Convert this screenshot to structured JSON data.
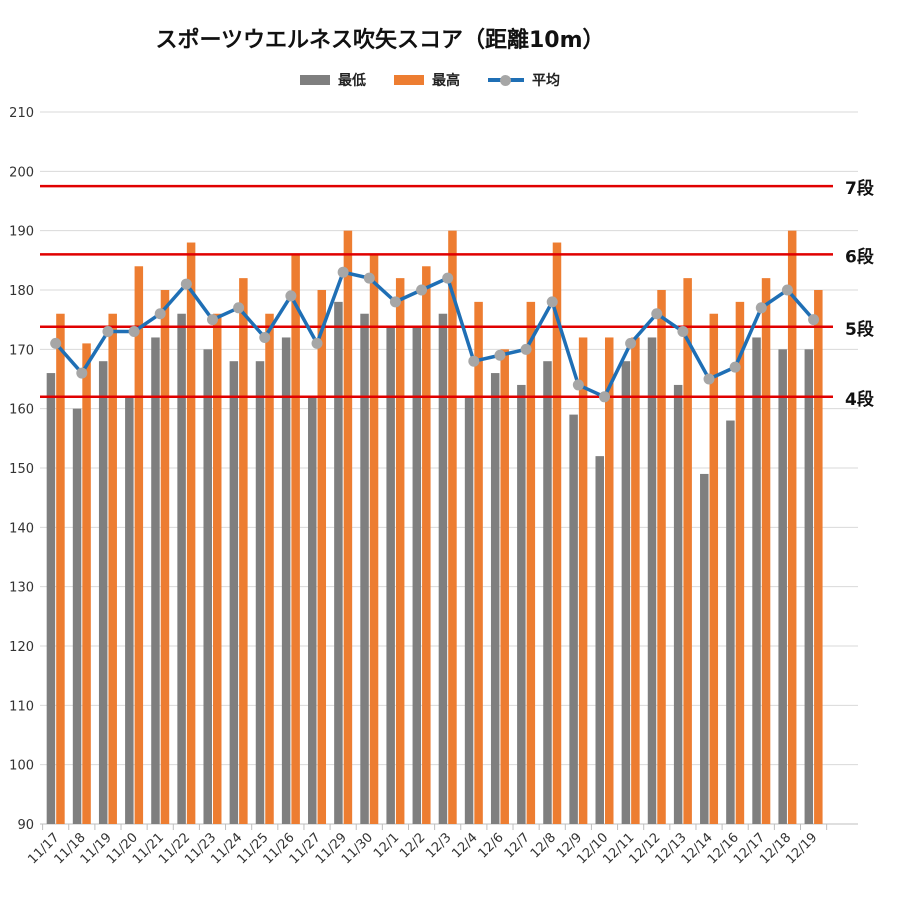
{
  "chart_data": {
    "type": "bar",
    "title": "スポーツウエルネス吹矢スコア（距離10m）",
    "categories": [
      "11/17",
      "11/18",
      "11/19",
      "11/20",
      "11/21",
      "11/22",
      "11/23",
      "11/24",
      "11/25",
      "11/26",
      "11/27",
      "11/29",
      "11/30",
      "12/1",
      "12/2",
      "12/3",
      "12/4",
      "12/6",
      "12/7",
      "12/8",
      "12/9",
      "12/10",
      "12/11",
      "12/12",
      "12/13",
      "12/14",
      "12/16",
      "12/17",
      "12/18",
      "12/19"
    ],
    "series": [
      {
        "name": "最低",
        "type": "bar",
        "color": "#7f7f7f",
        "values": [
          166,
          160,
          168,
          162,
          172,
          176,
          170,
          168,
          168,
          172,
          162,
          178,
          176,
          174,
          174,
          176,
          162,
          166,
          164,
          168,
          159,
          152,
          168,
          172,
          164,
          149,
          158,
          172,
          170,
          170
        ]
      },
      {
        "name": "最高",
        "type": "bar",
        "color": "#ed7d31",
        "values": [
          176,
          171,
          176,
          184,
          180,
          188,
          176,
          182,
          176,
          186,
          180,
          190,
          186,
          182,
          184,
          190,
          178,
          170,
          178,
          188,
          172,
          172,
          172,
          180,
          182,
          176,
          178,
          182,
          190,
          180
        ]
      },
      {
        "name": "平均",
        "type": "line",
        "color": "#1f6fb5",
        "marker_color": "#a6a6a6",
        "values": [
          171,
          166,
          173,
          173,
          176,
          181,
          175,
          177,
          172,
          179,
          171,
          183,
          182,
          178,
          180,
          182,
          168,
          169,
          170,
          178,
          164,
          162,
          171,
          176,
          173,
          165,
          167,
          177,
          180,
          175
        ]
      }
    ],
    "ylim": [
      90,
      210
    ],
    "yticks": [
      90,
      100,
      110,
      120,
      130,
      140,
      150,
      160,
      170,
      180,
      190,
      200,
      210
    ],
    "grid": true,
    "legend_position": "top",
    "reference_lines": [
      {
        "label": "7段",
        "value": 197.5,
        "color": "#e00000"
      },
      {
        "label": "6段",
        "value": 186,
        "color": "#e00000"
      },
      {
        "label": "5段",
        "value": 173.8,
        "color": "#e00000"
      },
      {
        "label": "4段",
        "value": 162,
        "color": "#e00000"
      }
    ]
  }
}
